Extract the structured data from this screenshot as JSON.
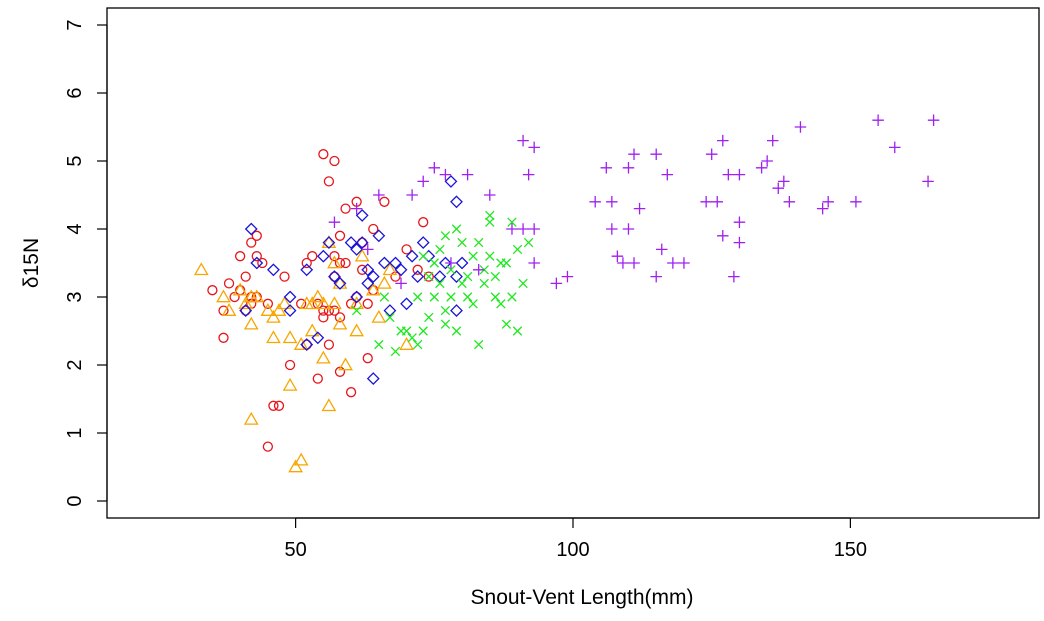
{
  "chart_data": {
    "type": "scatter",
    "title": "",
    "xlabel": "Snout-Vent Length(mm)",
    "ylabel": "δ15N",
    "xlim": [
      16,
      184
    ],
    "ylim": [
      -0.25,
      7.25
    ],
    "xticks": [
      50,
      100,
      150
    ],
    "yticks": [
      0,
      1,
      2,
      3,
      4,
      5,
      6,
      7
    ],
    "grid": false,
    "legend": "none",
    "series": [
      {
        "marker": "circle",
        "color": "#e8141a",
        "points": [
          [
            35,
            3.1
          ],
          [
            37,
            2.4
          ],
          [
            37,
            2.8
          ],
          [
            38,
            3.2
          ],
          [
            39,
            3.0
          ],
          [
            40,
            3.1
          ],
          [
            40,
            3.6
          ],
          [
            41,
            2.8
          ],
          [
            41,
            3.3
          ],
          [
            42,
            2.9
          ],
          [
            42,
            3.0
          ],
          [
            42,
            3.8
          ],
          [
            43,
            3.6
          ],
          [
            43,
            3.9
          ],
          [
            43,
            3.0
          ],
          [
            44,
            3.5
          ],
          [
            45,
            2.9
          ],
          [
            45,
            0.8
          ],
          [
            46,
            1.4
          ],
          [
            47,
            1.4
          ],
          [
            48,
            3.3
          ],
          [
            49,
            2.0
          ],
          [
            51,
            2.9
          ],
          [
            52,
            2.3
          ],
          [
            52,
            3.5
          ],
          [
            53,
            3.6
          ],
          [
            54,
            1.8
          ],
          [
            54,
            2.9
          ],
          [
            55,
            5.1
          ],
          [
            55,
            2.8
          ],
          [
            55,
            2.7
          ],
          [
            56,
            4.7
          ],
          [
            56,
            2.8
          ],
          [
            56,
            2.3
          ],
          [
            57,
            5.0
          ],
          [
            57,
            3.6
          ],
          [
            57,
            3.3
          ],
          [
            57,
            2.8
          ],
          [
            58,
            3.9
          ],
          [
            58,
            3.5
          ],
          [
            58,
            2.7
          ],
          [
            58,
            1.9
          ],
          [
            59,
            3.5
          ],
          [
            59,
            4.3
          ],
          [
            60,
            2.9
          ],
          [
            60,
            1.6
          ],
          [
            61,
            4.4
          ],
          [
            61,
            3.0
          ],
          [
            62,
            3.4
          ],
          [
            62,
            3.8
          ],
          [
            63,
            2.9
          ],
          [
            63,
            2.1
          ],
          [
            64,
            4.0
          ],
          [
            64,
            3.1
          ],
          [
            66,
            4.4
          ],
          [
            68,
            3.3
          ],
          [
            70,
            3.7
          ],
          [
            72,
            3.4
          ],
          [
            73,
            4.1
          ],
          [
            74,
            3.3
          ]
        ]
      },
      {
        "marker": "triangle",
        "color": "#f7a600",
        "points": [
          [
            33,
            3.4
          ],
          [
            37,
            3.0
          ],
          [
            38,
            2.8
          ],
          [
            40,
            3.1
          ],
          [
            41,
            2.9
          ],
          [
            42,
            3.0
          ],
          [
            42,
            2.6
          ],
          [
            42,
            1.2
          ],
          [
            43,
            3.0
          ],
          [
            45,
            2.8
          ],
          [
            46,
            2.4
          ],
          [
            46,
            2.7
          ],
          [
            47,
            2.8
          ],
          [
            48,
            2.9
          ],
          [
            49,
            2.4
          ],
          [
            49,
            1.7
          ],
          [
            50,
            0.5
          ],
          [
            51,
            2.3
          ],
          [
            51,
            0.6
          ],
          [
            52,
            2.9
          ],
          [
            53,
            2.5
          ],
          [
            53,
            2.9
          ],
          [
            54,
            3.0
          ],
          [
            55,
            2.9
          ],
          [
            55,
            2.1
          ],
          [
            56,
            3.8
          ],
          [
            56,
            1.4
          ],
          [
            57,
            2.9
          ],
          [
            57,
            3.5
          ],
          [
            58,
            2.6
          ],
          [
            58,
            3.2
          ],
          [
            59,
            2.0
          ],
          [
            61,
            2.5
          ],
          [
            61,
            2.9
          ],
          [
            62,
            3.6
          ],
          [
            64,
            3.1
          ],
          [
            65,
            2.7
          ],
          [
            66,
            3.2
          ],
          [
            67,
            3.4
          ],
          [
            70,
            2.3
          ]
        ]
      },
      {
        "marker": "diamond",
        "color": "#1a14d8",
        "points": [
          [
            41,
            2.8
          ],
          [
            42,
            4.0
          ],
          [
            43,
            3.5
          ],
          [
            46,
            3.4
          ],
          [
            49,
            2.8
          ],
          [
            49,
            3.0
          ],
          [
            52,
            3.4
          ],
          [
            52,
            2.3
          ],
          [
            54,
            2.4
          ],
          [
            55,
            3.6
          ],
          [
            56,
            3.8
          ],
          [
            57,
            3.3
          ],
          [
            58,
            3.2
          ],
          [
            60,
            3.8
          ],
          [
            61,
            3.0
          ],
          [
            61,
            3.7
          ],
          [
            62,
            3.8
          ],
          [
            62,
            4.2
          ],
          [
            63,
            3.2
          ],
          [
            63,
            3.4
          ],
          [
            64,
            1.8
          ],
          [
            64,
            3.3
          ],
          [
            65,
            3.9
          ],
          [
            66,
            3.5
          ],
          [
            67,
            2.8
          ],
          [
            68,
            3.5
          ],
          [
            69,
            3.4
          ],
          [
            70,
            2.9
          ],
          [
            71,
            3.6
          ],
          [
            72,
            3.3
          ],
          [
            73,
            3.8
          ],
          [
            74,
            3.6
          ],
          [
            76,
            3.3
          ],
          [
            77,
            3.5
          ],
          [
            78,
            4.7
          ],
          [
            79,
            4.4
          ],
          [
            79,
            3.3
          ],
          [
            79,
            2.8
          ],
          [
            80,
            3.5
          ]
        ]
      },
      {
        "marker": "x",
        "color": "#1ee81e",
        "points": [
          [
            61,
            2.8
          ],
          [
            65,
            2.3
          ],
          [
            66,
            3.0
          ],
          [
            67,
            2.7
          ],
          [
            68,
            2.2
          ],
          [
            69,
            2.5
          ],
          [
            70,
            2.5
          ],
          [
            71,
            2.4
          ],
          [
            72,
            2.3
          ],
          [
            73,
            2.5
          ],
          [
            73,
            3.6
          ],
          [
            74,
            3.3
          ],
          [
            75,
            3.0
          ],
          [
            75,
            3.5
          ],
          [
            76,
            3.2
          ],
          [
            77,
            2.6
          ],
          [
            77,
            2.8
          ],
          [
            77,
            3.9
          ],
          [
            78,
            3.4
          ],
          [
            78,
            3.0
          ],
          [
            79,
            2.5
          ],
          [
            79,
            4.0
          ],
          [
            80,
            3.8
          ],
          [
            80,
            3.2
          ],
          [
            81,
            3.0
          ],
          [
            82,
            3.6
          ],
          [
            82,
            2.9
          ],
          [
            83,
            3.8
          ],
          [
            83,
            2.3
          ],
          [
            84,
            3.2
          ],
          [
            84,
            3.4
          ],
          [
            85,
            4.1
          ],
          [
            85,
            3.6
          ],
          [
            86,
            3.3
          ],
          [
            86,
            3.0
          ],
          [
            87,
            3.5
          ],
          [
            87,
            2.9
          ],
          [
            88,
            3.5
          ],
          [
            88,
            2.6
          ],
          [
            89,
            4.1
          ],
          [
            89,
            3.0
          ],
          [
            90,
            3.7
          ],
          [
            90,
            2.5
          ],
          [
            91,
            3.2
          ],
          [
            92,
            3.8
          ],
          [
            72,
            3.0
          ],
          [
            74,
            2.7
          ],
          [
            76,
            3.7
          ],
          [
            81,
            3.3
          ],
          [
            85,
            4.2
          ]
        ]
      },
      {
        "marker": "plus",
        "color": "#a020f0",
        "points": [
          [
            57,
            4.1
          ],
          [
            61,
            4.3
          ],
          [
            63,
            3.7
          ],
          [
            65,
            4.5
          ],
          [
            69,
            3.2
          ],
          [
            71,
            4.5
          ],
          [
            73,
            4.7
          ],
          [
            75,
            4.9
          ],
          [
            77,
            4.8
          ],
          [
            78,
            3.5
          ],
          [
            81,
            4.8
          ],
          [
            83,
            3.4
          ],
          [
            85,
            4.5
          ],
          [
            89,
            4.0
          ],
          [
            91,
            5.3
          ],
          [
            91,
            4.0
          ],
          [
            92,
            4.8
          ],
          [
            93,
            5.2
          ],
          [
            93,
            4.0
          ],
          [
            93,
            3.5
          ],
          [
            97,
            3.2
          ],
          [
            99,
            3.3
          ],
          [
            104,
            4.4
          ],
          [
            106,
            4.9
          ],
          [
            107,
            4.4
          ],
          [
            107,
            4.0
          ],
          [
            108,
            3.6
          ],
          [
            109,
            3.5
          ],
          [
            110,
            4.9
          ],
          [
            110,
            4.0
          ],
          [
            111,
            5.1
          ],
          [
            111,
            3.5
          ],
          [
            112,
            4.3
          ],
          [
            115,
            5.1
          ],
          [
            115,
            3.3
          ],
          [
            116,
            3.7
          ],
          [
            117,
            4.8
          ],
          [
            118,
            3.5
          ],
          [
            120,
            3.5
          ],
          [
            124,
            4.4
          ],
          [
            125,
            5.1
          ],
          [
            126,
            4.4
          ],
          [
            127,
            5.3
          ],
          [
            127,
            3.9
          ],
          [
            128,
            4.8
          ],
          [
            129,
            3.3
          ],
          [
            130,
            4.8
          ],
          [
            130,
            4.1
          ],
          [
            130,
            3.8
          ],
          [
            134,
            4.9
          ],
          [
            135,
            5.0
          ],
          [
            136,
            5.3
          ],
          [
            137,
            4.6
          ],
          [
            138,
            4.7
          ],
          [
            139,
            4.4
          ],
          [
            141,
            5.5
          ],
          [
            145,
            4.3
          ],
          [
            146,
            4.4
          ],
          [
            151,
            4.4
          ],
          [
            155,
            5.6
          ],
          [
            158,
            5.2
          ],
          [
            164,
            4.7
          ],
          [
            165,
            5.6
          ]
        ]
      }
    ]
  }
}
